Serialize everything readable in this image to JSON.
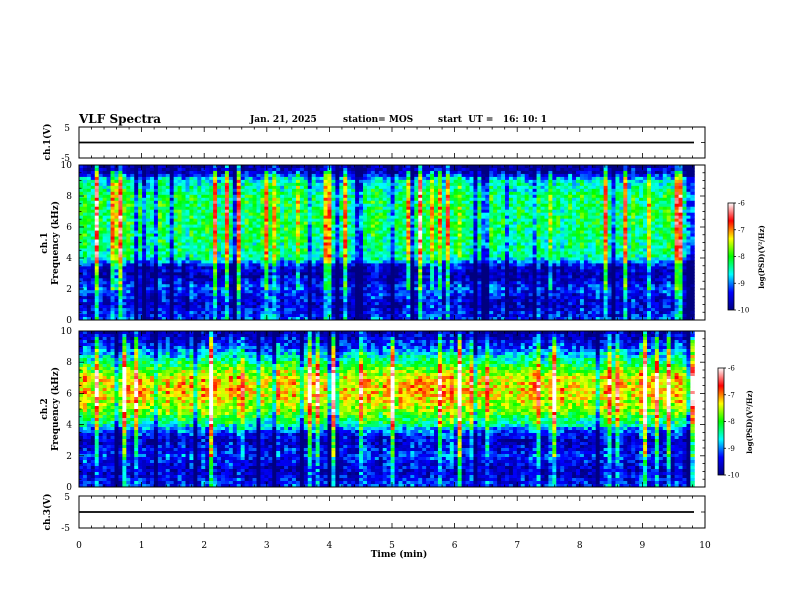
{
  "header": {
    "title": "VLF Spectra",
    "date": "Jan. 21, 2025",
    "station": "station= MOS",
    "start": "start  UT =   16: 10: 1"
  },
  "colors": {
    "colormap": [
      "#000080",
      "#0000ff",
      "#00ffff",
      "#00ff00",
      "#ffff00",
      "#ff0000",
      "#ffffff"
    ],
    "baseline": "#000000"
  },
  "chart_data": [
    {
      "type": "line",
      "panel": "ch1-waveform",
      "ylabel": "ch.1(V)",
      "ylim": [
        -5,
        5
      ],
      "yticks": [
        "5",
        "-5"
      ],
      "x": [
        0,
        10
      ],
      "values": [
        0,
        0
      ]
    },
    {
      "type": "heatmap",
      "panel": "ch1-spectrogram",
      "ylabel_line1": "ch.1",
      "ylabel_line2": "Frequency (kHz)",
      "ylim": [
        0,
        10
      ],
      "yticks": [
        "0",
        "2",
        "4",
        "6",
        "8",
        "10"
      ],
      "xlim": [
        0,
        9.83
      ],
      "colorbar": {
        "label": "log(PSD)(V²/Hz)",
        "range": [
          -10,
          -6
        ],
        "ticks": [
          "-6",
          "-7",
          "-8",
          "-9",
          "-10"
        ]
      },
      "band_profile_khz": [
        0,
        1,
        2,
        3,
        3.5,
        4,
        6,
        8,
        9,
        9.5,
        10
      ],
      "band_profile_log_psd": [
        -9.2,
        -9.6,
        -9.2,
        -9.8,
        -9.5,
        -8.4,
        -8.2,
        -8.2,
        -8.6,
        -9.6,
        -9.8
      ]
    },
    {
      "type": "heatmap",
      "panel": "ch2-spectrogram",
      "ylabel_line1": "ch.2",
      "ylabel_line2": "Frequency (kHz)",
      "ylim": [
        0,
        10
      ],
      "yticks": [
        "0",
        "2",
        "4",
        "6",
        "8",
        "10"
      ],
      "xlim": [
        0,
        9.83
      ],
      "colorbar": {
        "label": "log(PSD)(V²/Hz)",
        "range": [
          -10,
          -6
        ],
        "ticks": [
          "-6",
          "-7",
          "-8",
          "-9",
          "-10"
        ]
      },
      "band_profile_khz": [
        0,
        1,
        2,
        3,
        3.5,
        4,
        5,
        6,
        7,
        8,
        9,
        10
      ],
      "band_profile_log_psd": [
        -9.2,
        -9.6,
        -9.2,
        -9.6,
        -9.2,
        -8.4,
        -7.6,
        -7.2,
        -7.3,
        -8.2,
        -9.2,
        -9.8
      ]
    },
    {
      "type": "line",
      "panel": "ch3-waveform",
      "ylabel": "ch.3(V)",
      "ylim": [
        -5,
        5
      ],
      "yticks": [
        "5",
        "-5"
      ],
      "x": [
        0,
        10
      ],
      "values": [
        0,
        0
      ]
    }
  ],
  "xaxis": {
    "label": "Time (min)",
    "range": [
      0,
      10
    ],
    "ticks": [
      "0",
      "1",
      "2",
      "3",
      "4",
      "5",
      "6",
      "7",
      "8",
      "9",
      "10"
    ]
  }
}
